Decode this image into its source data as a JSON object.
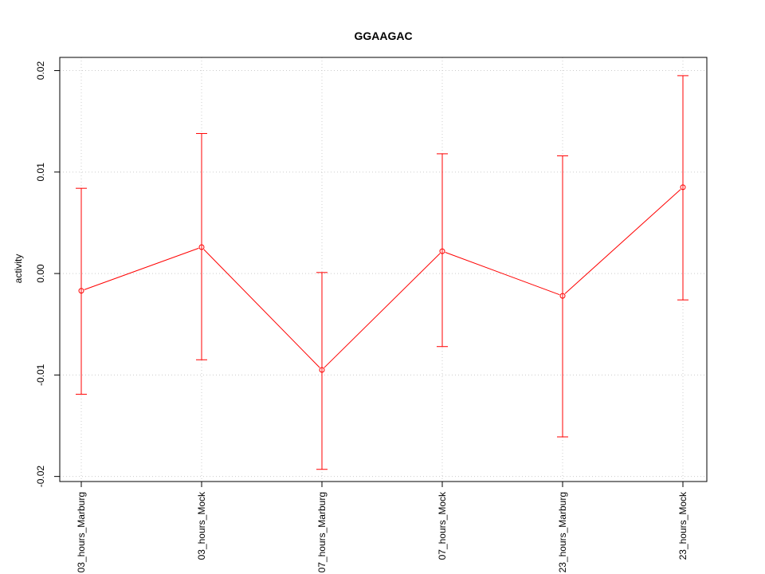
{
  "chart_data": {
    "type": "line",
    "title": "GGAAGAC",
    "xlabel": "",
    "ylabel": "activity",
    "categories": [
      "03_hours_Marburg",
      "03_hours_Mock",
      "07_hours_Marburg",
      "07_hours_Mock",
      "23_hours_Marburg",
      "23_hours_Mock"
    ],
    "series": [
      {
        "values": [
          -0.0017,
          0.0026,
          -0.0095,
          0.0022,
          -0.0022,
          0.0085
        ],
        "upper": [
          0.0084,
          0.0138,
          0.0001,
          0.0118,
          0.0116,
          0.0195
        ],
        "lower": [
          -0.0119,
          -0.0085,
          -0.0193,
          -0.0072,
          -0.0161,
          -0.0026
        ]
      }
    ],
    "yticks": [
      -0.02,
      -0.01,
      0.0,
      0.01,
      0.02
    ],
    "ytick_labels": [
      "-0.02",
      "-0.01",
      "0.00",
      "0.01",
      "0.02"
    ],
    "ylim": [
      -0.0205,
      0.0213
    ],
    "grid": true,
    "color": "#ff0000",
    "grid_color": "#cccccc"
  }
}
